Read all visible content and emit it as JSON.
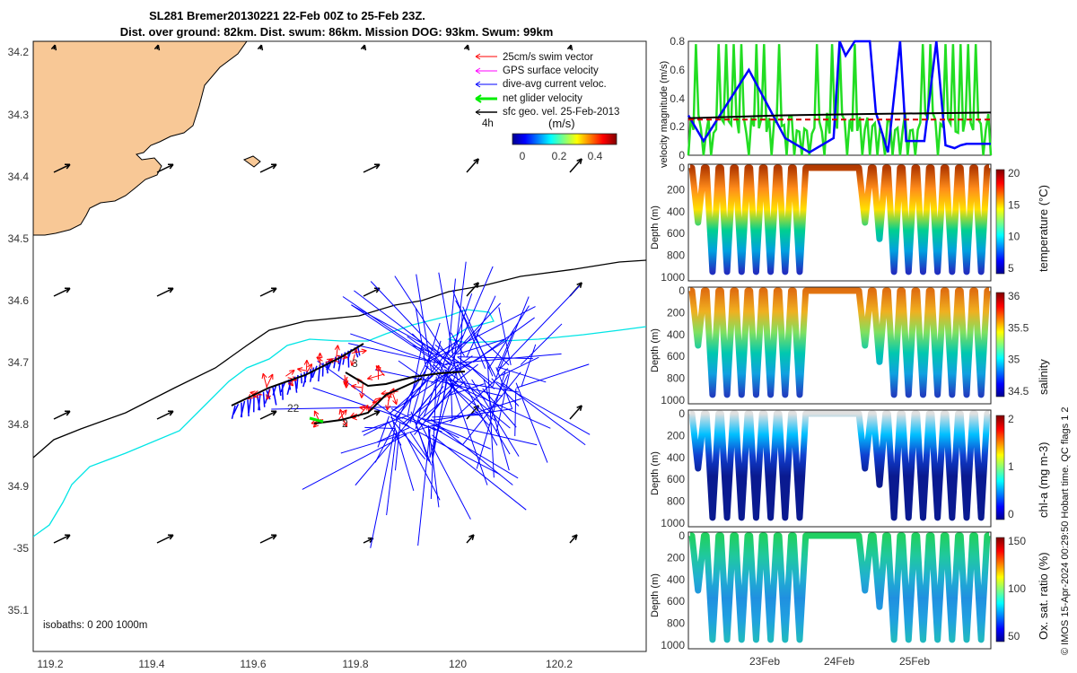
{
  "header": {
    "line1": "SL281 Bremer20130221 22-Feb 00Z to 25-Feb 23Z.",
    "line2": "Dist. over ground: 82km. Dist. swum: 86km. Mission DOG: 93km. Swum: 99km"
  },
  "map": {
    "lon_ticks": [
      "119.2",
      "119.4",
      "119.6",
      "119.8",
      "120",
      "120.2"
    ],
    "lat_ticks": [
      "34.2",
      "34.3",
      "34.4",
      "34.5",
      "34.6",
      "34.7",
      "34.8",
      "34.9",
      "-35",
      "35.1"
    ],
    "legend": {
      "items": [
        {
          "label": "25cm/s swim vector",
          "color": "#ff0000"
        },
        {
          "label": "GPS surface velocity",
          "color": "#ff00ff"
        },
        {
          "label": "dive-avg current veloc.",
          "color": "#0000ff"
        },
        {
          "label": "net glider velocity",
          "color": "#00ee00"
        },
        {
          "label": "sfc geo. vel. 25-Feb-2013",
          "color": "#000000"
        }
      ],
      "interval": "4h",
      "unit": "(m/s)",
      "colorbar_ticks": [
        "0",
        "0.2",
        "0.4"
      ]
    },
    "isobath_text": "isobaths: 0   200  1000m",
    "markers": [
      "3",
      "22",
      "2"
    ],
    "colors": {
      "land": "#f8c896",
      "isobath200": "#00e5e5",
      "isobath1000": "#000000",
      "current": "#0000ff",
      "swim": "#ff0000",
      "net": "#00ee00"
    }
  },
  "panels": {
    "velocity": {
      "ylabel": "velocity magnitude (m/s)",
      "yticks": [
        "0",
        "0.2",
        "0.4",
        "0.6",
        "0.8"
      ]
    },
    "temperature": {
      "ylabel": "Depth (m)",
      "clabel": "temperature (°C)",
      "yticks": [
        "0",
        "200",
        "400",
        "600",
        "800",
        "1000"
      ],
      "cticks": [
        "20",
        "15",
        "10",
        "5"
      ]
    },
    "salinity": {
      "ylabel": "Depth (m)",
      "clabel": "salinity",
      "yticks": [
        "0",
        "200",
        "400",
        "600",
        "800",
        "1000"
      ],
      "cticks": [
        "36",
        "35.5",
        "35",
        "34.5"
      ]
    },
    "chla": {
      "ylabel": "Depth (m)",
      "clabel": "chl-a (mg m-3)",
      "yticks": [
        "0",
        "200",
        "400",
        "600",
        "800",
        "1000"
      ],
      "cticks": [
        "2",
        "1",
        "0"
      ]
    },
    "oxygen": {
      "ylabel": "Depth (m)",
      "clabel": "Ox. sat. ratio (%)",
      "yticks": [
        "0",
        "200",
        "400",
        "600",
        "800",
        "1000"
      ],
      "cticks": [
        "150",
        "100",
        "50"
      ]
    },
    "date_ticks": [
      "23Feb",
      "24Feb",
      "25Feb"
    ],
    "side_note": "© IMOS 15-Apr-2024 00:29:50 Hobart time. QC flags 1  2"
  },
  "chart_data": {
    "type": "line",
    "title": "SL281 Bremer20130221 22-Feb 00Z to 25-Feb 23Z.",
    "map_extent": {
      "lon": [
        119.15,
        120.37
      ],
      "lat": [
        34.2,
        35.17
      ]
    },
    "velocity_magnitude": {
      "ylim": [
        0,
        0.8
      ],
      "series": [
        {
          "name": "dive-avg current veloc.",
          "color": "#0000ff",
          "x": [
            0.0,
            0.05,
            0.2,
            0.32,
            0.4,
            0.48,
            0.5,
            0.52,
            0.55,
            0.6,
            0.62,
            0.66,
            0.7,
            0.72,
            0.78,
            0.82,
            0.85,
            0.88,
            0.9,
            0.92,
            1.0
          ],
          "y": [
            0.28,
            0.1,
            0.6,
            0.12,
            0.02,
            0.12,
            0.8,
            0.7,
            0.8,
            0.8,
            0.3,
            0.02,
            0.8,
            0.1,
            0.1,
            0.8,
            0.07,
            0.05,
            0.07,
            0.08,
            0.08
          ]
        },
        {
          "name": "sfc geo. vel.",
          "color": "#000000",
          "x": [
            0.0,
            0.3,
            0.6,
            1.0
          ],
          "y": [
            0.26,
            0.28,
            0.29,
            0.3
          ]
        },
        {
          "name": "25cm/s swim vector",
          "color": "#d00000",
          "x": [
            0.0,
            1.0
          ],
          "y": [
            0.25,
            0.25
          ]
        }
      ]
    },
    "depth_panels": {
      "ylim": [
        1000,
        0
      ],
      "dives_max_depth": [
        500,
        950,
        950,
        950,
        950,
        950,
        950,
        950,
        500,
        650,
        950,
        950,
        950,
        950,
        950,
        950,
        950
      ],
      "temperature_range": [
        4,
        22
      ],
      "salinity_range": [
        34.4,
        36.0
      ],
      "chla_range": [
        0,
        2
      ],
      "oxygen_range": [
        30,
        170
      ]
    }
  }
}
